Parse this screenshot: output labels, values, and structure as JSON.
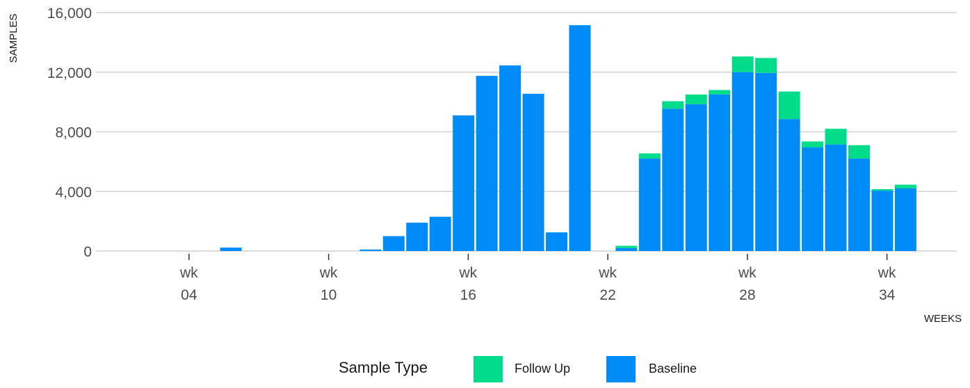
{
  "chart_data": {
    "type": "bar",
    "stacked": true,
    "xlabel": "WEEKS",
    "ylabel": "SAMPLES",
    "ylim": [
      0,
      16000
    ],
    "yticks": [
      {
        "value": 0,
        "label": "0"
      },
      {
        "value": 4000,
        "label": "4,000"
      },
      {
        "value": 8000,
        "label": "8,000"
      },
      {
        "value": 12000,
        "label": "12,000"
      },
      {
        "value": 16000,
        "label": "16,000"
      }
    ],
    "xlim": [
      0,
      37
    ],
    "xticks": [
      {
        "value": 4,
        "line1": "wk",
        "line2": "04"
      },
      {
        "value": 10,
        "line1": "wk",
        "line2": "10"
      },
      {
        "value": 16,
        "line1": "wk",
        "line2": "16"
      },
      {
        "value": 22,
        "line1": "wk",
        "line2": "22"
      },
      {
        "value": 28,
        "line1": "wk",
        "line2": "28"
      },
      {
        "value": 34,
        "line1": "wk",
        "line2": "34"
      }
    ],
    "x": [
      5.8,
      11.8,
      12.8,
      13.8,
      14.8,
      15.8,
      16.8,
      17.8,
      18.8,
      19.8,
      20.8,
      22.8,
      23.8,
      24.8,
      25.8,
      26.8,
      27.8,
      28.8,
      29.8,
      30.8,
      31.8,
      32.8,
      33.8,
      34.8
    ],
    "series": [
      {
        "name": "Baseline",
        "color": "#008cf8",
        "values": [
          230,
          100,
          1000,
          1900,
          2300,
          9100,
          11750,
          12450,
          10550,
          1250,
          15150,
          200,
          6200,
          9550,
          9850,
          10500,
          12000,
          11950,
          8850,
          6950,
          7150,
          6200,
          4050,
          4200
        ]
      },
      {
        "name": "Follow Up",
        "color": "#00dc8a",
        "values": [
          0,
          0,
          0,
          0,
          0,
          0,
          0,
          0,
          0,
          0,
          0,
          150,
          350,
          500,
          650,
          300,
          1050,
          1000,
          1850,
          400,
          1050,
          900,
          100,
          250
        ]
      }
    ],
    "legend": {
      "title": "Sample Type",
      "position": "bottom",
      "entries": [
        {
          "label": "Follow Up",
          "color": "#00dc8a"
        },
        {
          "label": "Baseline",
          "color": "#008cf8"
        }
      ]
    },
    "grid": "horizontal-major"
  }
}
